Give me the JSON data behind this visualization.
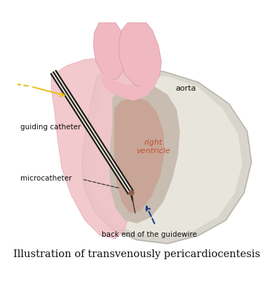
{
  "title": "Illustration of transvenously pericardiocentesis",
  "title_fontsize": 10.5,
  "bg_color": "#ffffff",
  "aorta_text": "aorta",
  "label_guiding": "guiding catheter",
  "label_micro": "microcatheter",
  "label_guidewire": "back end of the guidewire",
  "label_rv": "right\nventricle",
  "arrow_blue": "#1a3a8a",
  "arrow_yellow": "#e8c020",
  "label_color": "#111111",
  "rv_label_color": "#c05030"
}
